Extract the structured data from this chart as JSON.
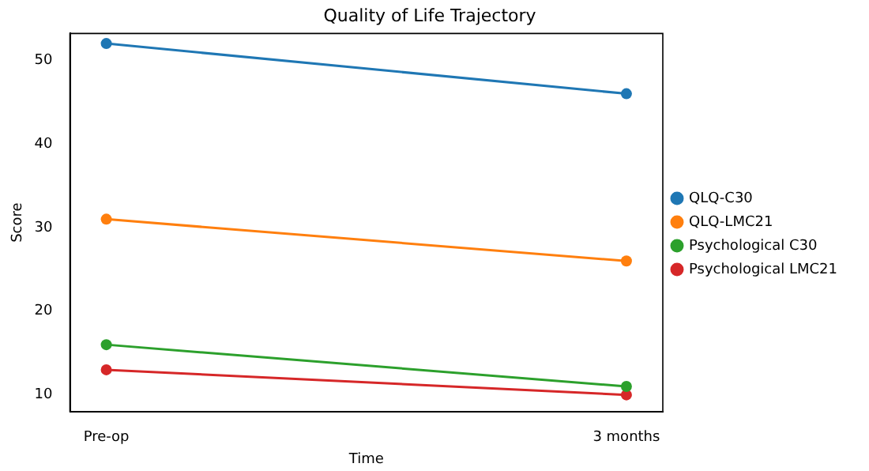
{
  "chart_data": {
    "type": "line",
    "title": "Quality of Life Trajectory",
    "xlabel": "Time",
    "ylabel": "Score",
    "categories": [
      "Pre-op",
      "3 months"
    ],
    "series": [
      {
        "name": "QLQ-C30",
        "color": "#1f77b4",
        "values": [
          52,
          46
        ]
      },
      {
        "name": "QLQ-LMC21",
        "color": "#ff7f0e",
        "values": [
          31,
          26
        ]
      },
      {
        "name": "Psychological C30",
        "color": "#2ca02c",
        "values": [
          16,
          11
        ]
      },
      {
        "name": "Psychological LMC21",
        "color": "#d62728",
        "values": [
          13,
          10
        ]
      }
    ],
    "ylim": [
      8,
      53.2
    ],
    "yticks": [
      10,
      20,
      30,
      40,
      50
    ],
    "grid": false,
    "legend": "right",
    "marker": "circle",
    "line_style": "solid"
  }
}
